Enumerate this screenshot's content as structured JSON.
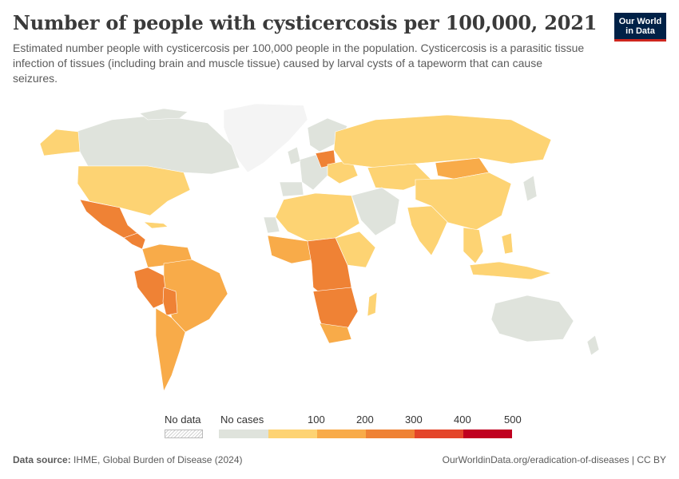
{
  "header": {
    "title": "Number of people with cysticercosis per 100,000, 2021",
    "subtitle": "Estimated number people with cysticercosis per 100,000 people in the population. Cysticercosis is a parasitic tissue infection of tissues (including brain and muscle tissue) caused by larval cysts of a tapeworm that can cause seizures."
  },
  "logo": {
    "line1": "Our World",
    "line2": "in Data"
  },
  "legend": {
    "no_data_label": "No data",
    "no_cases_label": "No cases",
    "ticks": [
      "100",
      "200",
      "300",
      "400",
      "500"
    ],
    "colors": {
      "no_cases": "#dfe3dc",
      "bin1": "#fdd373",
      "bin2": "#f8ab49",
      "bin3": "#ef8235",
      "bin4": "#e4452a",
      "bin5": "#c0001f"
    }
  },
  "map_data": {
    "type": "choropleth",
    "year": 2021,
    "regions": [
      {
        "name": "Greenland",
        "bin": "No data"
      },
      {
        "name": "Canada",
        "bin": "No cases"
      },
      {
        "name": "Alaska",
        "bin": "0-100"
      },
      {
        "name": "United States",
        "bin": "0-100"
      },
      {
        "name": "Mexico",
        "bin": "200-300"
      },
      {
        "name": "Central America",
        "bin": "200-300"
      },
      {
        "name": "Colombia / Venezuela",
        "bin": "100-200"
      },
      {
        "name": "Peru",
        "bin": "200-300"
      },
      {
        "name": "Brazil",
        "bin": "100-200"
      },
      {
        "name": "Argentina / Chile",
        "bin": "100-200"
      },
      {
        "name": "Western Europe",
        "bin": "No cases"
      },
      {
        "name": "Poland",
        "bin": "200-300"
      },
      {
        "name": "Russia",
        "bin": "0-100"
      },
      {
        "name": "Mongolia",
        "bin": "100-200"
      },
      {
        "name": "China",
        "bin": "0-100"
      },
      {
        "name": "Middle East",
        "bin": "No cases"
      },
      {
        "name": "India",
        "bin": "0-100"
      },
      {
        "name": "Southeast Asia",
        "bin": "0-100"
      },
      {
        "name": "North Africa",
        "bin": "0-100"
      },
      {
        "name": "West Africa",
        "bin": "100-200"
      },
      {
        "name": "Central Africa",
        "bin": "200-300"
      },
      {
        "name": "Southern Africa",
        "bin": "200-300"
      },
      {
        "name": "Madagascar",
        "bin": "0-100"
      },
      {
        "name": "Australia",
        "bin": "No cases"
      },
      {
        "name": "New Zealand",
        "bin": "No cases"
      }
    ]
  },
  "footer": {
    "source_label": "Data source:",
    "source_text": "IHME, Global Burden of Disease (2024)",
    "url": "OurWorldinData.org/eradication-of-diseases | CC BY"
  }
}
